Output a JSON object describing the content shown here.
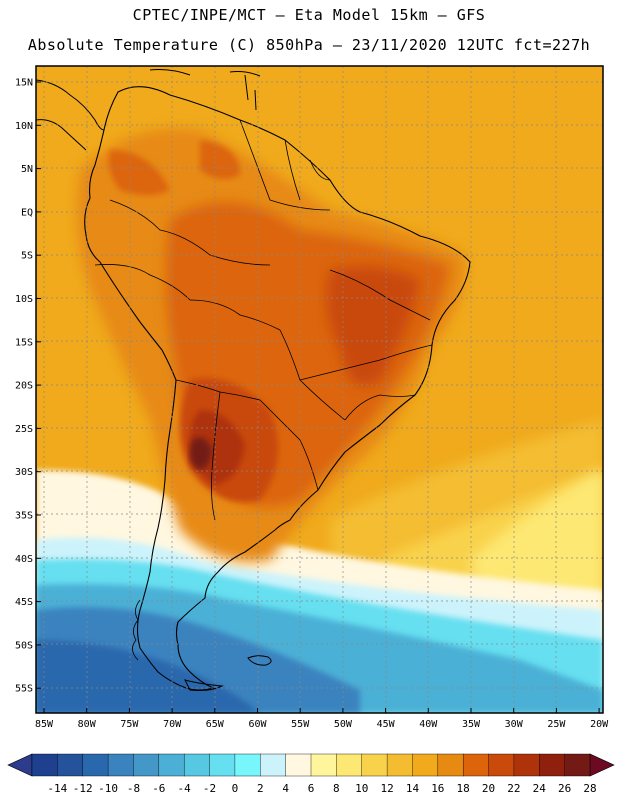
{
  "header": {
    "line1": "CPTEC/INPE/MCT –  Eta Model 15km – GFS",
    "line2": "Absolute Temperature (C) 850hPa – 23/11/2020 12UTC fct=227h"
  },
  "axes": {
    "lat_labels": [
      "15N",
      "10N",
      "5N",
      "EQ",
      "5S",
      "10S",
      "15S",
      "20S",
      "25S",
      "30S",
      "35S",
      "40S",
      "45S",
      "50S",
      "55S"
    ],
    "lon_labels": [
      "85W",
      "80W",
      "75W",
      "70W",
      "65W",
      "60W",
      "55W",
      "50W",
      "45W",
      "40W",
      "35W",
      "30W",
      "25W",
      "20W"
    ]
  },
  "colorbar": {
    "labels": [
      "-14",
      "-12",
      "-10",
      "-8",
      "-6",
      "-4",
      "-2",
      "0",
      "2",
      "4",
      "6",
      "8",
      "10",
      "12",
      "14",
      "16",
      "18",
      "20",
      "22",
      "24",
      "26",
      "28"
    ],
    "colors": [
      "#1f3f8f",
      "#24539c",
      "#2a68ad",
      "#3b83bf",
      "#4498c8",
      "#4cb0d6",
      "#57c8e2",
      "#66dff0",
      "#77f6fb",
      "#ccf3fb",
      "#fff7e0",
      "#fff59c",
      "#fde873",
      "#f9d24b",
      "#f4bd31",
      "#f0aa1c",
      "#e78a12",
      "#dc650c",
      "#c94a0a",
      "#ae330b",
      "#8f200d",
      "#731a14"
    ],
    "left_arrow_color": "#2c3b8c",
    "right_arrow_color": "#6b0a22"
  },
  "map_colors": {
    "ocean_warm": "#f0aa1c",
    "ocean_pale": "#f4bd31",
    "land_hot": "#dc650c",
    "land_hotter": "#c94a0a",
    "land_max": "#731a14",
    "south_cold": "#4cb0d6",
    "south_coldest": "#2a68ad"
  }
}
